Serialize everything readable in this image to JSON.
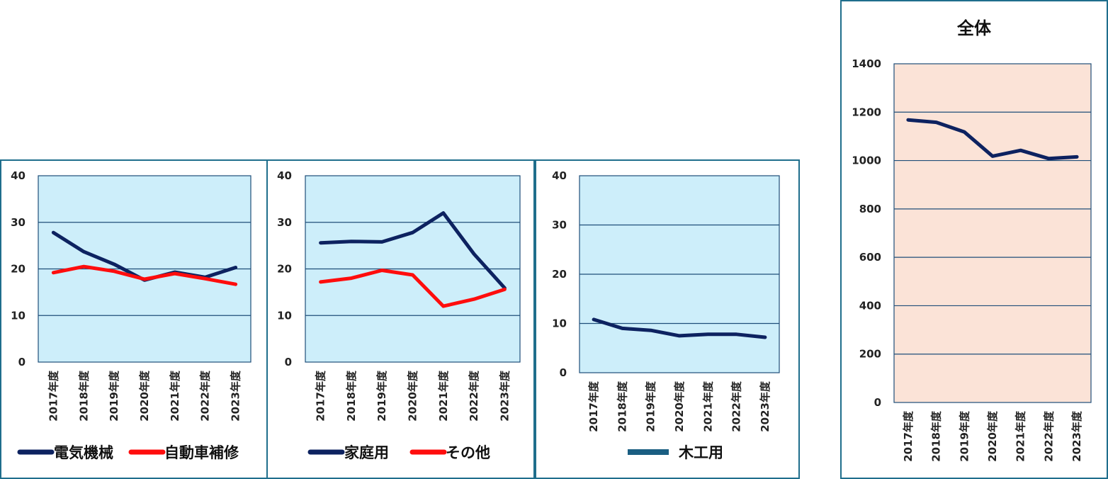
{
  "chart_data": [
    {
      "type": "line",
      "categories": [
        "2017年度",
        "2018年度",
        "2019年度",
        "2020年度",
        "2021年度",
        "2022年度",
        "2023年度"
      ],
      "ylim": [
        0,
        40
      ],
      "yticks": [
        0,
        10,
        20,
        30,
        40
      ],
      "grid": true,
      "legend": "bottom",
      "plot_bg": "#cdeefa",
      "series": [
        {
          "name": "電気機械",
          "color": "#0d2260",
          "values": [
            27.8,
            23.7,
            21.0,
            17.6,
            19.3,
            18.2,
            20.3
          ]
        },
        {
          "name": "自動車補修",
          "color": "#ff0d0d",
          "values": [
            19.2,
            20.5,
            19.5,
            17.8,
            19.0,
            17.9,
            16.7
          ]
        }
      ]
    },
    {
      "type": "line",
      "categories": [
        "2017年度",
        "2018年度",
        "2019年度",
        "2020年度",
        "2021年度",
        "2022年度",
        "2023年度"
      ],
      "ylim": [
        0,
        40
      ],
      "yticks": [
        0,
        10,
        20,
        30,
        40
      ],
      "grid": true,
      "legend": "bottom",
      "plot_bg": "#cdeefa",
      "series": [
        {
          "name": "家庭用",
          "color": "#0d2260",
          "values": [
            25.6,
            25.9,
            25.8,
            27.8,
            32.0,
            23.2,
            15.9
          ]
        },
        {
          "name": "その他",
          "color": "#ff0d0d",
          "values": [
            17.2,
            18.0,
            19.7,
            18.7,
            12.0,
            13.5,
            15.6
          ]
        }
      ]
    },
    {
      "type": "line",
      "categories": [
        "2017年度",
        "2018年度",
        "2019年度",
        "2020年度",
        "2021年度",
        "2022年度",
        "2023年度"
      ],
      "ylim": [
        0,
        40
      ],
      "yticks": [
        0,
        10,
        20,
        30,
        40
      ],
      "grid": true,
      "legend": "bottom",
      "plot_bg": "#cdeefa",
      "series": [
        {
          "name": "木工用",
          "color": "#0d2260",
          "legend_color": "#1a5e82",
          "values": [
            10.8,
            9.0,
            8.6,
            7.5,
            7.8,
            7.8,
            7.2
          ]
        }
      ]
    },
    {
      "type": "line",
      "title": "全体",
      "categories": [
        "2017年度",
        "2018年度",
        "2019年度",
        "2020年度",
        "2021年度",
        "2022年度",
        "2023年度"
      ],
      "ylim": [
        0,
        1400
      ],
      "yticks": [
        0,
        200,
        400,
        600,
        800,
        1000,
        1200,
        1400
      ],
      "grid": true,
      "plot_bg": "#fbe3d7",
      "series": [
        {
          "color": "#0d2260",
          "values": [
            1168,
            1158,
            1118,
            1018,
            1042,
            1008,
            1015
          ]
        }
      ]
    }
  ]
}
